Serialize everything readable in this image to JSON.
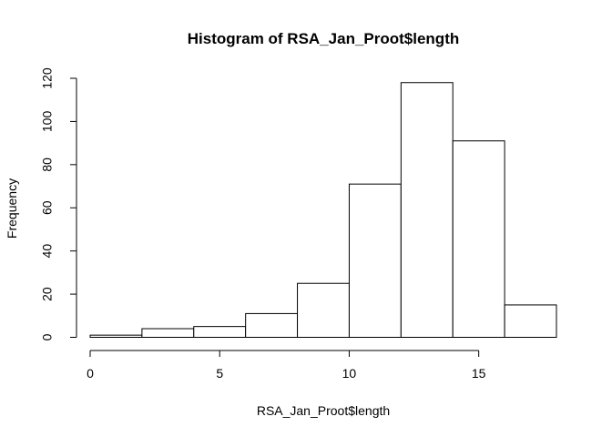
{
  "chart_data": {
    "type": "bar",
    "title": "Histogram of RSA_Jan_Proot$length",
    "xlabel": "RSA_Jan_Proot$length",
    "ylabel": "Frequency",
    "bins": [
      {
        "start": 0,
        "end": 2,
        "count": 1
      },
      {
        "start": 2,
        "end": 4,
        "count": 4
      },
      {
        "start": 4,
        "end": 6,
        "count": 5
      },
      {
        "start": 6,
        "end": 8,
        "count": 11
      },
      {
        "start": 8,
        "end": 10,
        "count": 25
      },
      {
        "start": 10,
        "end": 12,
        "count": 71
      },
      {
        "start": 12,
        "end": 14,
        "count": 118
      },
      {
        "start": 14,
        "end": 16,
        "count": 91
      },
      {
        "start": 16,
        "end": 18,
        "count": 15
      }
    ],
    "xlim": [
      0,
      18
    ],
    "ylim": [
      0,
      120
    ],
    "xticks": [
      0,
      5,
      10,
      15
    ],
    "yticks": [
      0,
      20,
      40,
      60,
      80,
      100,
      120
    ],
    "grid": false,
    "colors": {
      "bar_fill": "#ffffff",
      "bar_stroke": "#000000"
    }
  }
}
